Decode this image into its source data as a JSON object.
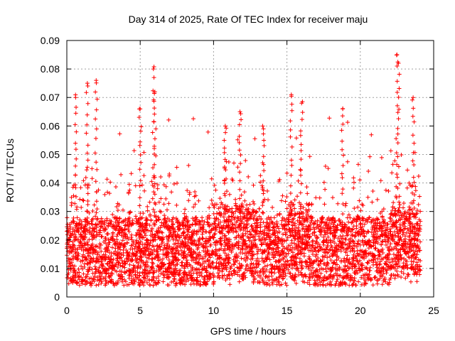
{
  "chart_data": {
    "type": "scatter",
    "title": "Day 314 of 2025, Rate Of TEC Index for receiver maju",
    "xlabel": "GPS time / hours",
    "ylabel": "ROTI / TECUs",
    "xlim": [
      0,
      25
    ],
    "ylim": [
      0,
      0.09
    ],
    "xticks": [
      "0",
      "5",
      "10",
      "15",
      "20",
      "25"
    ],
    "yticks": [
      "0",
      "0.01",
      "0.02",
      "0.03",
      "0.04",
      "0.05",
      "0.06",
      "0.07",
      "0.08",
      "0.09"
    ],
    "grid": true,
    "marker": "+",
    "color": "#ff0000",
    "series": [
      {
        "name": "ROTI",
        "description": "Dense scatter of ROTI values from 0 to 24 h; bulk between 0.005 and 0.035 TECU/min",
        "peaks": [
          {
            "x": 0.6,
            "y": 0.07
          },
          {
            "x": 1.4,
            "y": 0.075
          },
          {
            "x": 2.0,
            "y": 0.076
          },
          {
            "x": 5.0,
            "y": 0.066
          },
          {
            "x": 5.9,
            "y": 0.08
          },
          {
            "x": 6.0,
            "y": 0.072
          },
          {
            "x": 10.8,
            "y": 0.06
          },
          {
            "x": 11.8,
            "y": 0.065
          },
          {
            "x": 13.4,
            "y": 0.059
          },
          {
            "x": 15.3,
            "y": 0.071
          },
          {
            "x": 16.0,
            "y": 0.068
          },
          {
            "x": 18.8,
            "y": 0.066
          },
          {
            "x": 22.5,
            "y": 0.085
          },
          {
            "x": 22.6,
            "y": 0.082
          },
          {
            "x": 23.6,
            "y": 0.07
          }
        ]
      }
    ]
  }
}
